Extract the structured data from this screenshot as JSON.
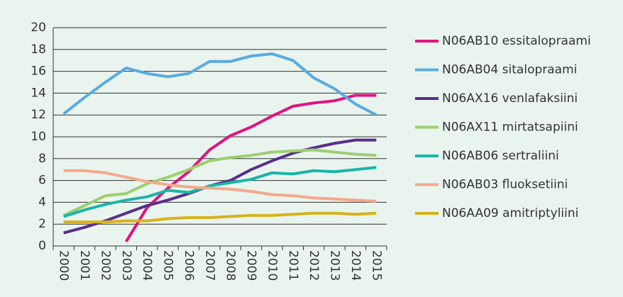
{
  "chart_data": {
    "type": "line",
    "categories": [
      "2000",
      "2001",
      "2002",
      "2003",
      "2004",
      "2005",
      "2006",
      "2007",
      "2008",
      "2009",
      "2010",
      "2011",
      "2012",
      "2013",
      "2014",
      "2015"
    ],
    "series": [
      {
        "name": "N06AB10 essitalopraami",
        "color": "#e0147e",
        "values": [
          null,
          null,
          null,
          0.4,
          3.5,
          5.3,
          6.8,
          8.8,
          10.1,
          10.9,
          11.9,
          12.8,
          13.1,
          13.3,
          13.8,
          13.8
        ]
      },
      {
        "name": "N06AB04 sitalopraami",
        "color": "#5aabe0",
        "values": [
          12.1,
          13.6,
          15.0,
          16.3,
          15.8,
          15.5,
          15.8,
          16.9,
          16.9,
          17.4,
          17.6,
          17.0,
          15.4,
          14.4,
          13.0,
          12.0
        ]
      },
      {
        "name": "N06AX16 venlafaksiini",
        "color": "#5a2d8c",
        "values": [
          1.2,
          1.7,
          2.3,
          3.0,
          3.7,
          4.2,
          4.8,
          5.5,
          6.0,
          7.0,
          7.8,
          8.5,
          9.0,
          9.4,
          9.7,
          9.7
        ]
      },
      {
        "name": "N06AX11 mirtatsapiini",
        "color": "#9dcf6e",
        "values": [
          2.8,
          3.7,
          4.6,
          4.8,
          5.7,
          6.3,
          7.0,
          7.8,
          8.1,
          8.3,
          8.6,
          8.7,
          8.8,
          8.6,
          8.4,
          8.3
        ]
      },
      {
        "name": "N06AB06 sertraliini",
        "color": "#1ab5a8",
        "values": [
          2.7,
          3.3,
          3.8,
          4.2,
          4.5,
          5.1,
          4.9,
          5.5,
          5.8,
          6.1,
          6.7,
          6.6,
          6.9,
          6.8,
          7.0,
          7.2
        ]
      },
      {
        "name": "N06AB03 fluoksetiini",
        "color": "#f4a98a",
        "values": [
          6.9,
          6.9,
          6.7,
          6.3,
          5.9,
          5.6,
          5.4,
          5.3,
          5.2,
          5.0,
          4.7,
          4.6,
          4.4,
          4.3,
          4.2,
          4.1
        ]
      },
      {
        "name": "N06AA09 amitriptyliini",
        "color": "#d6b21c",
        "values": [
          2.2,
          2.2,
          2.2,
          2.3,
          2.3,
          2.5,
          2.6,
          2.6,
          2.7,
          2.8,
          2.8,
          2.9,
          3.0,
          3.0,
          2.9,
          3.0
        ]
      }
    ],
    "ylim": [
      0,
      20
    ],
    "yticks": [
      0,
      2,
      4,
      6,
      8,
      10,
      12,
      14,
      16,
      18,
      20
    ],
    "grid": true,
    "legend": "right"
  }
}
